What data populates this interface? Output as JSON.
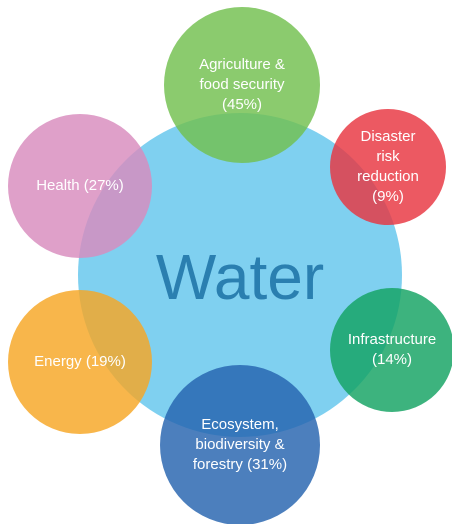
{
  "center": {
    "label": "Water"
  },
  "nodes": [
    {
      "lines": [
        "Agriculture &",
        "food security",
        "(45%)"
      ]
    },
    {
      "lines": [
        "Disaster",
        "risk",
        "reduction",
        "(9%)"
      ]
    },
    {
      "lines": [
        "Infrastructure",
        "(14%)"
      ]
    },
    {
      "lines": [
        "Ecosystem,",
        "biodiversity &",
        "forestry (31%)"
      ]
    },
    {
      "lines": [
        "Energy (19%)"
      ]
    },
    {
      "lines": [
        "Health (27%)"
      ]
    }
  ]
}
